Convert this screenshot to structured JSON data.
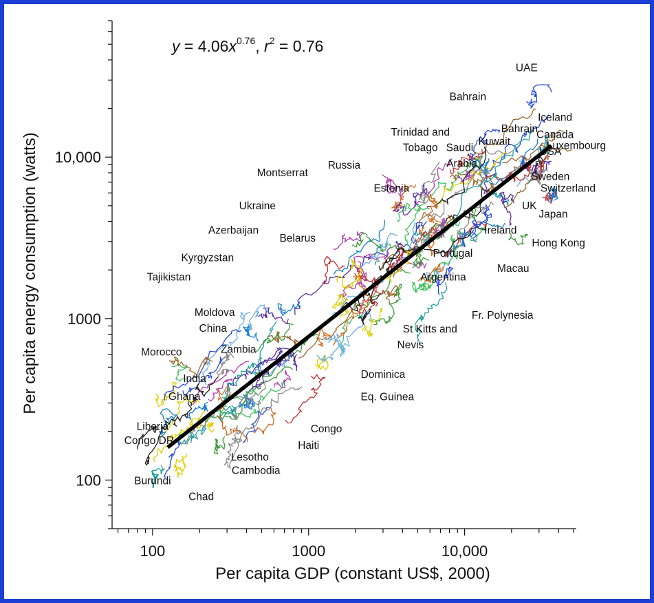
{
  "frame_color": "#1c3fd6",
  "chart_data": {
    "type": "line",
    "xscale": "log",
    "yscale": "log",
    "xlim": [
      55,
      52000
    ],
    "ylim": [
      50,
      70000
    ],
    "xlabel": "Per capita GDP (constant US$, 2000)",
    "ylabel": "Per capita energy consumption (watts)",
    "xticks": [
      {
        "value": 100,
        "label": "100"
      },
      {
        "value": 1000,
        "label": "1000"
      },
      {
        "value": 10000,
        "label": "10,000"
      }
    ],
    "yticks": [
      {
        "value": 100,
        "label": "100"
      },
      {
        "value": 1000,
        "label": "1000"
      },
      {
        "value": 10000,
        "label": "10,000"
      }
    ],
    "equation": {
      "y": "y",
      "eq": " = 4.06",
      "x": "x",
      "exp1": "0.76",
      "comma": ", ",
      "r": "r",
      "exp2": "2",
      "tail": " = 0.76"
    },
    "fit": {
      "coef": 4.06,
      "exponent": 0.76,
      "x_start": 125,
      "x_end": 36000,
      "color": "#000000"
    },
    "labels": [
      {
        "text": "UAE",
        "x": 25000,
        "y": 34000
      },
      {
        "text": "Bahrain",
        "x": 10500,
        "y": 22500
      },
      {
        "text": "Iceland",
        "x": 38000,
        "y": 16800
      },
      {
        "text": "Bahrain",
        "x": 22500,
        "y": 14300
      },
      {
        "text": "Canada",
        "x": 38000,
        "y": 13100
      },
      {
        "text": "Trinidad and",
        "x": 5200,
        "y": 13600
      },
      {
        "text": "Tobago",
        "x": 5200,
        "y": 10900
      },
      {
        "text": "Kuwait",
        "x": 15500,
        "y": 11900
      },
      {
        "text": "Saudi",
        "x": 9300,
        "y": 10900
      },
      {
        "text": "Arabia",
        "x": 9600,
        "y": 8700
      },
      {
        "text": "USA",
        "x": 35500,
        "y": 10300
      },
      {
        "text": "Luxembourg",
        "x": 52000,
        "y": 11200
      },
      {
        "text": "Russia",
        "x": 1690,
        "y": 8500
      },
      {
        "text": "Montserrat",
        "x": 680,
        "y": 7600
      },
      {
        "text": "Sweden",
        "x": 35500,
        "y": 7200
      },
      {
        "text": "Switzerland",
        "x": 46000,
        "y": 6100
      },
      {
        "text": "Estonia",
        "x": 3400,
        "y": 6100
      },
      {
        "text": "Ukraine",
        "x": 470,
        "y": 4750
      },
      {
        "text": "UK",
        "x": 26000,
        "y": 4750
      },
      {
        "text": "Japan",
        "x": 37000,
        "y": 4220
      },
      {
        "text": "Azerbaijan",
        "x": 330,
        "y": 3350
      },
      {
        "text": "Belarus",
        "x": 850,
        "y": 3000
      },
      {
        "text": "Ireland",
        "x": 17000,
        "y": 3350
      },
      {
        "text": "Hong Kong",
        "x": 40000,
        "y": 2800
      },
      {
        "text": "Portugal",
        "x": 8400,
        "y": 2420
      },
      {
        "text": "Kyrgyzstan",
        "x": 225,
        "y": 2260
      },
      {
        "text": "Macau",
        "x": 20500,
        "y": 1950
      },
      {
        "text": "Tajikistan",
        "x": 127,
        "y": 1720
      },
      {
        "text": "Argentina",
        "x": 7300,
        "y": 1720
      },
      {
        "text": "Moldova",
        "x": 250,
        "y": 1040
      },
      {
        "text": "Fr. Polynesia",
        "x": 17500,
        "y": 1000
      },
      {
        "text": "China",
        "x": 244,
        "y": 830
      },
      {
        "text": "St Kitts and",
        "x": 6000,
        "y": 820
      },
      {
        "text": "Nevis",
        "x": 4500,
        "y": 655
      },
      {
        "text": "Zambia",
        "x": 355,
        "y": 615
      },
      {
        "text": "Morocco",
        "x": 114,
        "y": 590
      },
      {
        "text": "India",
        "x": 186,
        "y": 405
      },
      {
        "text": "Dominica",
        "x": 3000,
        "y": 430
      },
      {
        "text": "Ghana",
        "x": 160,
        "y": 314
      },
      {
        "text": "Eq. Guinea",
        "x": 3200,
        "y": 312
      },
      {
        "text": "Liberia",
        "x": 100,
        "y": 205
      },
      {
        "text": "Congo",
        "x": 1300,
        "y": 198
      },
      {
        "text": "Haiti",
        "x": 1000,
        "y": 156
      },
      {
        "text": "Congo DR",
        "x": 95,
        "y": 167
      },
      {
        "text": "Lesotho",
        "x": 420,
        "y": 132
      },
      {
        "text": "Cambodia",
        "x": 460,
        "y": 109
      },
      {
        "text": "Burundi",
        "x": 100,
        "y": 94
      },
      {
        "text": "Chad",
        "x": 205,
        "y": 75
      }
    ],
    "trajectory_colors": [
      "#1f1f1f",
      "#2a4bd6",
      "#22a0a0",
      "#3c9c3c",
      "#c03030",
      "#b040b0",
      "#e0d000",
      "#8a8a8a",
      "#5a2fa0",
      "#d06a20",
      "#1a7fd0",
      "#6fb0e0",
      "#9a6a30",
      "#40c060"
    ]
  }
}
